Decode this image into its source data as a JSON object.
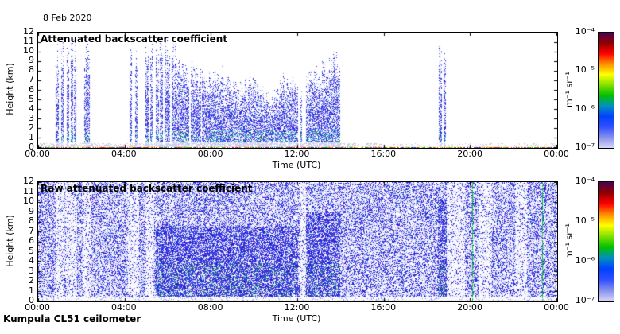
{
  "figure": {
    "date_label": "8 Feb 2020",
    "footer": "Kumpula CL51 ceilometer"
  },
  "chart_data": [
    {
      "type": "heatmap",
      "panel": "top",
      "title": "Attenuated backscatter coefficient",
      "xlabel": "Time (UTC)",
      "ylabel": "Height (km)",
      "x_range_hours": [
        0,
        24
      ],
      "ylim": [
        0,
        12
      ],
      "xticks": [
        "00:00",
        "04:00",
        "08:00",
        "12:00",
        "16:00",
        "20:00",
        "00:00"
      ],
      "xtick_hours": [
        0,
        4,
        8,
        12,
        16,
        20,
        24
      ],
      "yticks": [
        0,
        1,
        2,
        3,
        4,
        5,
        6,
        7,
        8,
        9,
        10,
        11,
        12
      ],
      "colorbar": {
        "unit": "m⁻¹ sr⁻¹",
        "scale": "log",
        "tick_labels": [
          "10⁻⁴",
          "10⁻⁵",
          "10⁻⁶",
          "10⁻⁷"
        ],
        "tick_values": [
          0.0001,
          1e-05,
          1e-06,
          1e-07
        ],
        "colormap_stops": [
          "#4b0055",
          "#900000",
          "#ff0000",
          "#ff9000",
          "#ffff00",
          "#80e000",
          "#00c000",
          "#0090c0",
          "#0040ff",
          "#3050ff",
          "#8890ee",
          "#d8d8f8"
        ]
      },
      "seed": 42,
      "features": {
        "background": "white (no signal)",
        "surface_echo_layer_km": 0.3,
        "low_haze_dense_until_h": 16,
        "plumes": [
          {
            "start_h": 0.82,
            "end_h": 0.95,
            "top_km": 9.8
          },
          {
            "start_h": 1.05,
            "end_h": 1.18,
            "top_km": 10.2
          },
          {
            "start_h": 1.33,
            "end_h": 1.44,
            "top_km": 9.9
          },
          {
            "start_h": 1.5,
            "end_h": 1.6,
            "top_km": 10.3
          },
          {
            "start_h": 1.66,
            "end_h": 1.76,
            "top_km": 9.7
          },
          {
            "start_h": 2.12,
            "end_h": 2.38,
            "top_km": 10.4
          },
          {
            "start_h": 4.22,
            "end_h": 4.34,
            "top_km": 10.1
          },
          {
            "start_h": 4.48,
            "end_h": 4.6,
            "top_km": 9.3
          },
          {
            "start_h": 4.97,
            "end_h": 5.1,
            "top_km": 10.4
          },
          {
            "start_h": 5.18,
            "end_h": 5.3,
            "top_km": 10.1
          },
          {
            "start_h": 5.45,
            "end_h": 12.02,
            "top_profile": [
              [
                5.45,
                10.4
              ],
              [
                6.1,
                10.1
              ],
              [
                6.6,
                9.0
              ],
              [
                7.3,
                7.8
              ],
              [
                8.0,
                7.1
              ],
              [
                8.5,
                7.6
              ],
              [
                9.2,
                6.1
              ],
              [
                9.8,
                6.9
              ],
              [
                10.4,
                5.6
              ],
              [
                10.8,
                4.7
              ],
              [
                11.2,
                6.3
              ],
              [
                11.7,
                6.6
              ],
              [
                12.02,
                6.2
              ]
            ],
            "gap_h": [
              [
                5.58,
                5.63
              ],
              [
                5.78,
                5.84
              ],
              [
                6.1,
                6.16
              ],
              [
                7.0,
                7.05
              ],
              [
                7.52,
                7.56
              ]
            ]
          },
          {
            "start_h": 12.12,
            "end_h": 12.22,
            "top_km": 5.4
          },
          {
            "start_h": 12.38,
            "end_h": 13.98,
            "top_profile": [
              [
                12.38,
                7.1
              ],
              [
                12.9,
                7.4
              ],
              [
                13.4,
                8.2
              ],
              [
                13.8,
                9.4
              ],
              [
                13.98,
                9.0
              ]
            ]
          },
          {
            "start_h": 18.52,
            "end_h": 18.68,
            "top_km": 10.2
          },
          {
            "start_h": 18.73,
            "end_h": 18.85,
            "top_km": 9.9
          }
        ]
      }
    },
    {
      "type": "heatmap",
      "panel": "bottom",
      "title": "Raw attenuated backscatter coefficient",
      "xlabel": "Time (UTC)",
      "ylabel": "Height (km)",
      "x_range_hours": [
        0,
        24
      ],
      "ylim": [
        0,
        12
      ],
      "xticks": [
        "00:00",
        "04:00",
        "08:00",
        "12:00",
        "16:00",
        "20:00",
        "00:00"
      ],
      "xtick_hours": [
        0,
        4,
        8,
        12,
        16,
        20,
        24
      ],
      "yticks": [
        0,
        1,
        2,
        3,
        4,
        5,
        6,
        7,
        8,
        9,
        10,
        11,
        12
      ],
      "colorbar": {
        "unit": "m⁻¹ sr⁻¹",
        "scale": "log",
        "tick_labels": [
          "10⁻⁴",
          "10⁻⁵",
          "10⁻⁶",
          "10⁻⁷"
        ],
        "tick_values": [
          0.0001,
          1e-05,
          1e-06,
          1e-07
        ],
        "colormap_stops": [
          "#4b0055",
          "#900000",
          "#ff0000",
          "#ff9000",
          "#ffff00",
          "#80e000",
          "#00c000",
          "#0090c0",
          "#0040ff",
          "#3050ff",
          "#8890ee",
          "#d8d8f8"
        ]
      },
      "seed": 1337,
      "features": {
        "background": "speckled blue instrument noise over full domain",
        "noise_density": 0.48,
        "surface_echo_layer_km": 0.3,
        "light_columns": [
          [
            0.82,
            1.2
          ],
          [
            1.3,
            1.8
          ],
          [
            2.05,
            2.45
          ],
          [
            4.15,
            4.65
          ],
          [
            4.95,
            5.35
          ],
          [
            12.08,
            12.38
          ],
          [
            18.9,
            19.75
          ],
          [
            20.35,
            20.95
          ],
          [
            22.05,
            22.6
          ]
        ],
        "dense_columns": [
          [
            5.45,
            12.02,
            7.5
          ],
          [
            12.38,
            13.98,
            9.0
          ],
          [
            18.5,
            18.88,
            10.3
          ]
        ],
        "green_lines_h": [
          20.05,
          23.3
        ]
      }
    }
  ]
}
